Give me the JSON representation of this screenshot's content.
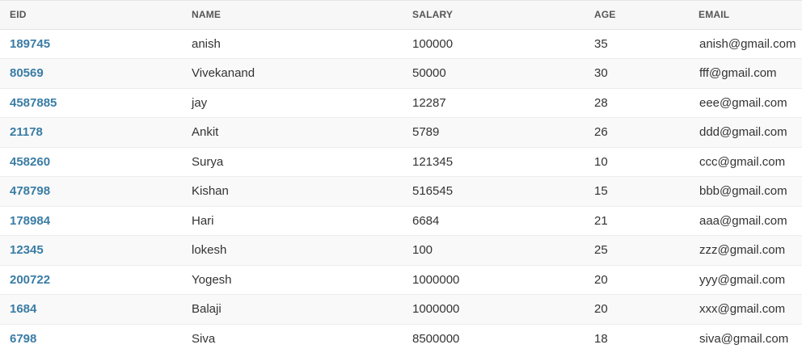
{
  "colors": {
    "accent_link": "#3a7ca5",
    "header_bg": "#f7f7f7",
    "row_stripe": "#f9f9f9"
  },
  "table": {
    "headers": {
      "eid": "EID",
      "name": "NAME",
      "salary": "SALARY",
      "age": "AGE",
      "email": "EMAIL"
    },
    "rows": [
      {
        "eid": "189745",
        "name": "anish",
        "salary": "100000",
        "age": "35",
        "email": "anish@gmail.com"
      },
      {
        "eid": "80569",
        "name": "Vivekanand",
        "salary": "50000",
        "age": "30",
        "email": "fff@gmail.com"
      },
      {
        "eid": "4587885",
        "name": "jay",
        "salary": "12287",
        "age": "28",
        "email": "eee@gmail.com"
      },
      {
        "eid": "21178",
        "name": "Ankit",
        "salary": "5789",
        "age": "26",
        "email": "ddd@gmail.com"
      },
      {
        "eid": "458260",
        "name": "Surya",
        "salary": "121345",
        "age": "10",
        "email": "ccc@gmail.com"
      },
      {
        "eid": "478798",
        "name": "Kishan",
        "salary": "516545",
        "age": "15",
        "email": "bbb@gmail.com"
      },
      {
        "eid": "178984",
        "name": "Hari",
        "salary": "6684",
        "age": "21",
        "email": "aaa@gmail.com"
      },
      {
        "eid": "12345",
        "name": "lokesh",
        "salary": "100",
        "age": "25",
        "email": "zzz@gmail.com"
      },
      {
        "eid": "200722",
        "name": "Yogesh",
        "salary": "1000000",
        "age": "20",
        "email": "yyy@gmail.com"
      },
      {
        "eid": "1684",
        "name": "Balaji",
        "salary": "1000000",
        "age": "20",
        "email": "xxx@gmail.com"
      },
      {
        "eid": "6798",
        "name": "Siva",
        "salary": "8500000",
        "age": "18",
        "email": "siva@gmail.com"
      }
    ]
  }
}
